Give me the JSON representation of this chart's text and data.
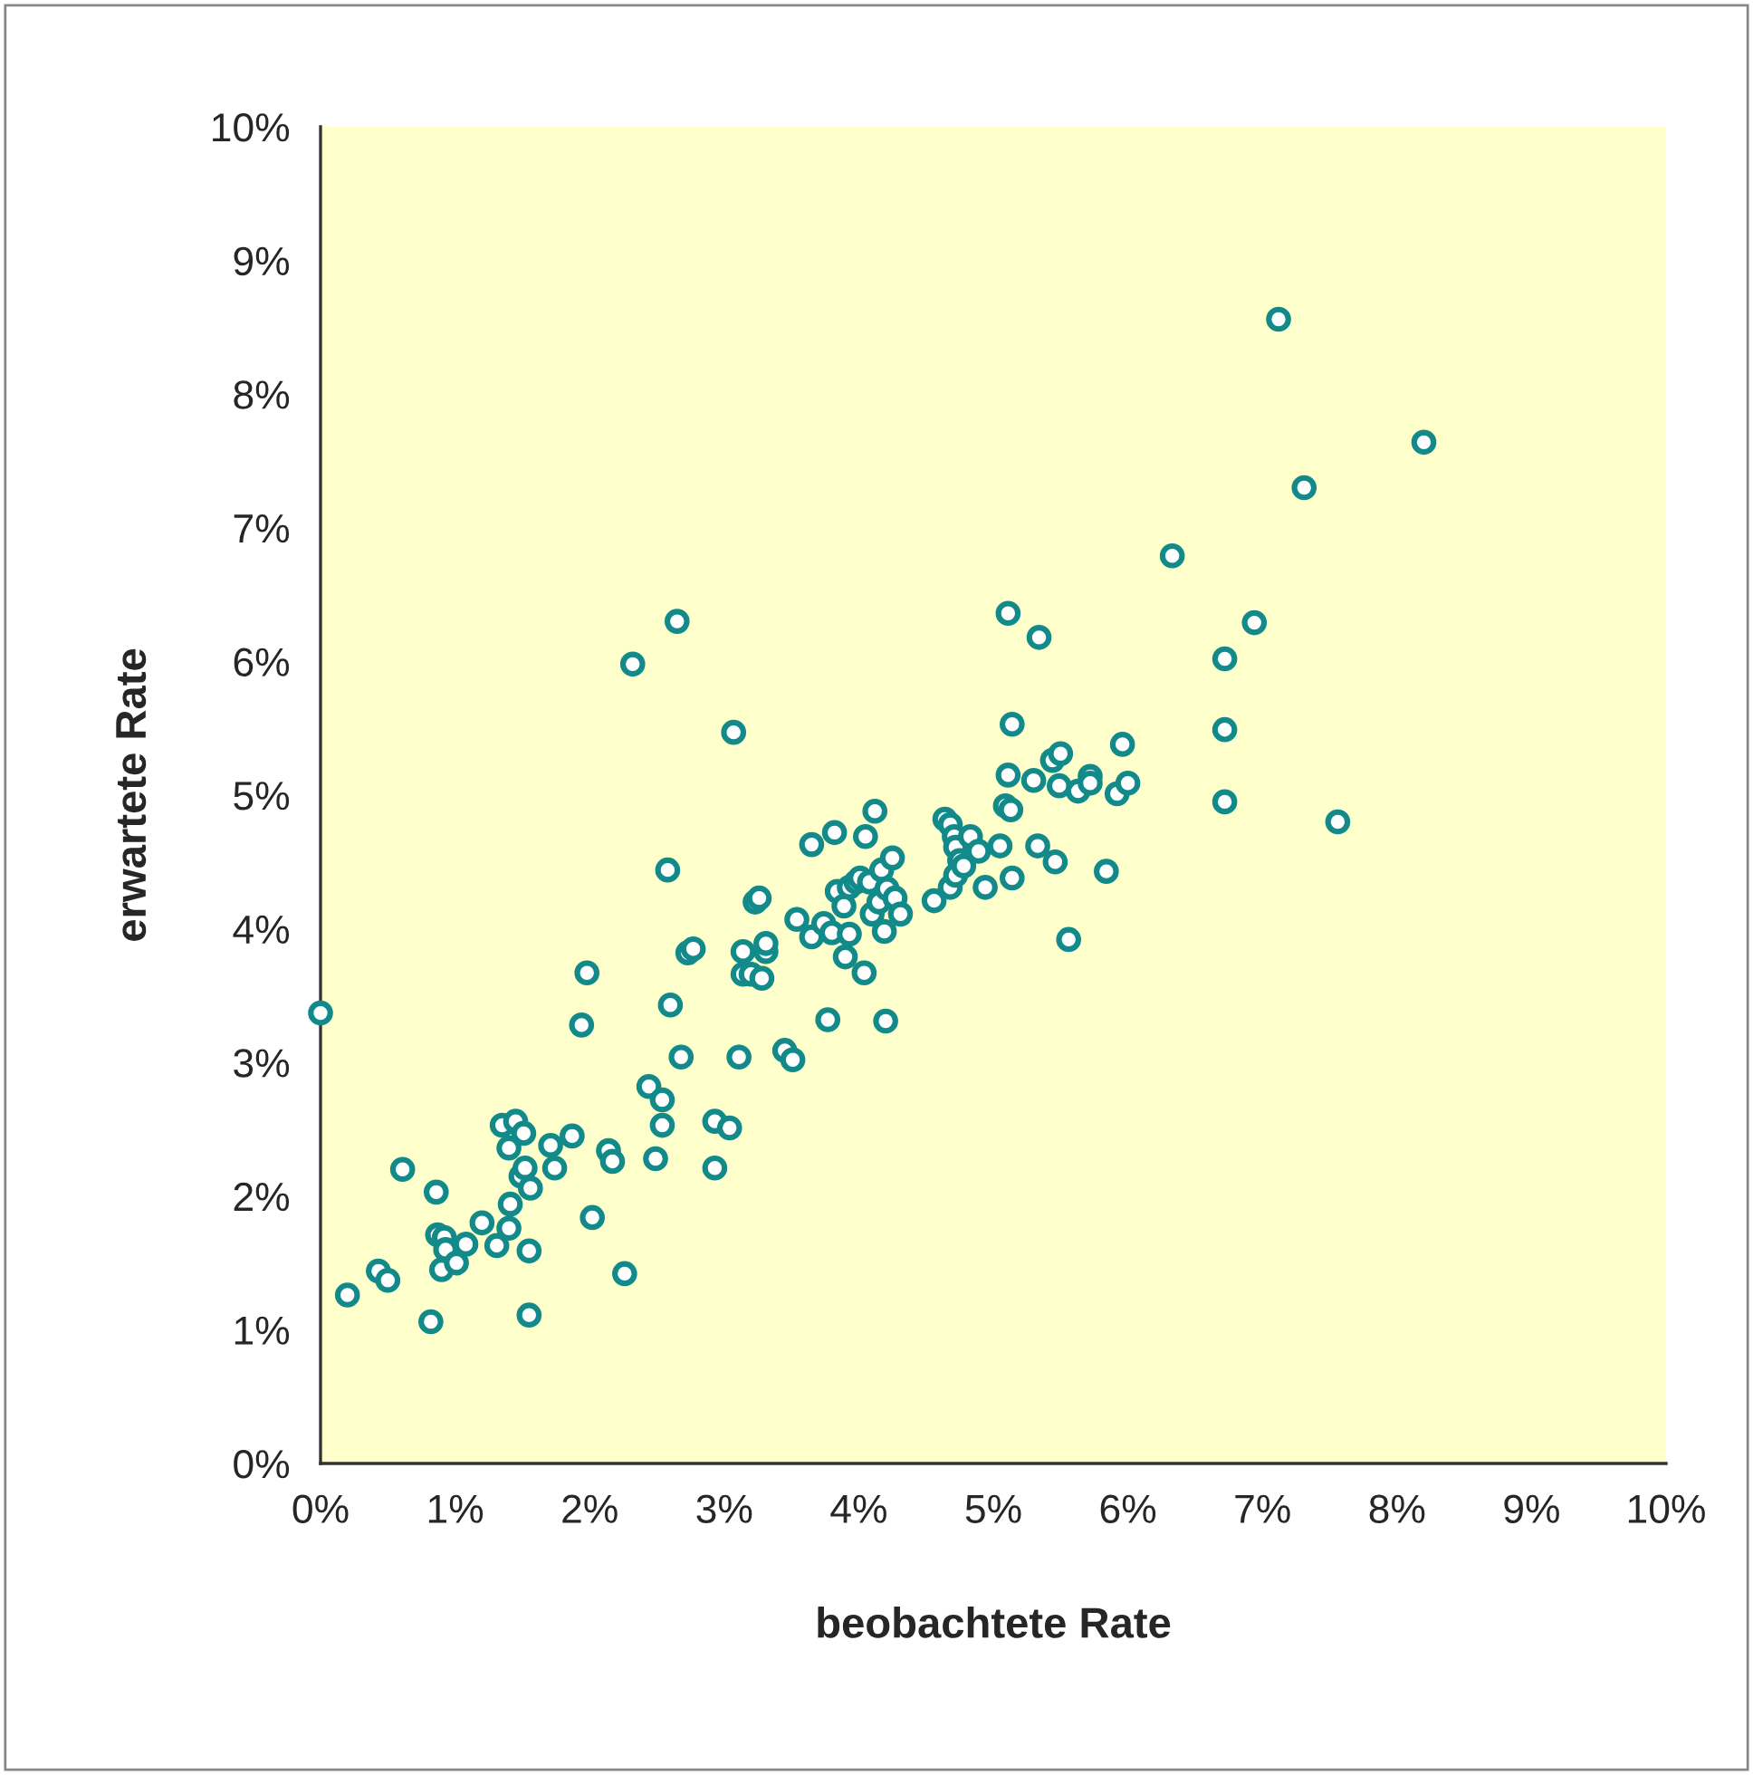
{
  "chart_data": {
    "type": "scatter",
    "xlabel": "beobachtete Rate",
    "ylabel": "erwartete Rate",
    "xlim": [
      0,
      10
    ],
    "ylim": [
      0,
      10
    ],
    "xticks": [
      {
        "value": 0,
        "label": "0%"
      },
      {
        "value": 1,
        "label": "1%"
      },
      {
        "value": 2,
        "label": "2%"
      },
      {
        "value": 3,
        "label": "3%"
      },
      {
        "value": 4,
        "label": "4%"
      },
      {
        "value": 5,
        "label": "5%"
      },
      {
        "value": 6,
        "label": "6%"
      },
      {
        "value": 7,
        "label": "7%"
      },
      {
        "value": 8,
        "label": "8%"
      },
      {
        "value": 9,
        "label": "9%"
      },
      {
        "value": 10,
        "label": "10%"
      }
    ],
    "yticks": [
      {
        "value": 0,
        "label": "0%"
      },
      {
        "value": 1,
        "label": "1%"
      },
      {
        "value": 2,
        "label": "2%"
      },
      {
        "value": 3,
        "label": "3%"
      },
      {
        "value": 4,
        "label": "4%"
      },
      {
        "value": 5,
        "label": "5%"
      },
      {
        "value": 6,
        "label": "6%"
      },
      {
        "value": 7,
        "label": "7%"
      },
      {
        "value": 8,
        "label": "8%"
      },
      {
        "value": 9,
        "label": "9%"
      },
      {
        "value": 10,
        "label": "10%"
      }
    ],
    "grid": false,
    "marker": "circle",
    "series": [
      {
        "color": "#138a8a",
        "x": [
          0,
          0.2,
          0.43,
          0.5,
          0.61,
          0.82,
          0.86,
          0.87,
          0.92,
          0.9,
          0.93,
          1.01,
          1.08,
          1.2,
          1.31,
          1.35,
          1.4,
          1.41,
          1.4,
          1.45,
          1.49,
          1.51,
          1.52,
          1.55,
          1.55,
          1.56,
          1.71,
          1.74,
          1.87,
          1.94,
          1.98,
          2.02,
          2.14,
          2.17,
          2.26,
          2.32,
          2.44,
          2.54,
          2.54,
          2.49,
          2.6,
          2.58,
          2.65,
          2.68,
          2.73,
          2.77,
          2.93,
          2.93,
          3.04,
          3.07,
          3.11,
          3.14,
          3.14,
          3.2,
          3.23,
          3.26,
          3.28,
          3.31,
          3.31,
          3.45,
          3.51,
          3.54,
          3.65,
          3.65,
          3.74,
          3.77,
          3.8,
          3.82,
          3.84,
          3.89,
          3.9,
          3.93,
          3.93,
          3.98,
          4.01,
          4.04,
          4.05,
          4.08,
          4.1,
          4.12,
          4.2,
          4.15,
          4.17,
          4.19,
          4.21,
          4.25,
          4.27,
          4.31,
          4.64,
          4.68,
          4.71,
          4.72,
          4.75,
          4.68,
          4.72,
          4.78,
          4.83,
          4.89,
          4.56,
          4.94,
          5.05,
          5.09,
          5.13,
          5.11,
          5.14,
          5.11,
          5.14,
          5.34,
          5.3,
          5.33,
          5.44,
          5.5,
          5.49,
          5.46,
          5.56,
          5.63,
          5.72,
          5.72,
          5.84,
          5.92,
          5.96,
          6.0,
          6.33,
          6.72,
          6.72,
          6.72,
          6.94,
          7.12,
          7.31,
          7.56,
          8.2
        ],
        "values": [
          3.37,
          1.26,
          1.44,
          1.37,
          2.2,
          1.06,
          2.03,
          1.71,
          1.69,
          1.45,
          1.6,
          1.5,
          1.64,
          1.8,
          1.63,
          2.53,
          2.36,
          1.94,
          1.76,
          2.56,
          2.15,
          2.47,
          2.21,
          1.11,
          1.59,
          2.06,
          2.38,
          2.21,
          2.45,
          3.28,
          3.67,
          1.84,
          2.34,
          2.26,
          1.42,
          5.98,
          2.82,
          2.72,
          2.53,
          2.28,
          3.43,
          4.44,
          6.3,
          3.04,
          3.82,
          3.85,
          2.56,
          2.21,
          2.51,
          5.47,
          3.04,
          3.83,
          3.66,
          3.66,
          4.2,
          4.23,
          3.63,
          3.83,
          3.89,
          3.09,
          3.02,
          4.07,
          4.63,
          3.94,
          4.04,
          3.32,
          3.97,
          4.72,
          4.28,
          4.17,
          3.79,
          4.31,
          3.96,
          4.35,
          4.38,
          3.67,
          4.69,
          4.35,
          4.11,
          4.88,
          3.31,
          4.2,
          4.44,
          3.98,
          4.3,
          4.53,
          4.23,
          4.11,
          4.82,
          4.78,
          4.69,
          4.61,
          4.51,
          4.31,
          4.4,
          4.47,
          4.69,
          4.58,
          4.21,
          4.31,
          4.62,
          4.92,
          4.89,
          5.15,
          5.53,
          6.36,
          4.38,
          6.18,
          5.11,
          4.62,
          5.26,
          5.31,
          5.07,
          4.5,
          3.92,
          5.03,
          5.14,
          5.09,
          4.43,
          5.01,
          5.38,
          5.09,
          6.79,
          6.02,
          5.49,
          4.95,
          6.29,
          8.56,
          7.3,
          4.8,
          7.64
        ]
      }
    ]
  }
}
